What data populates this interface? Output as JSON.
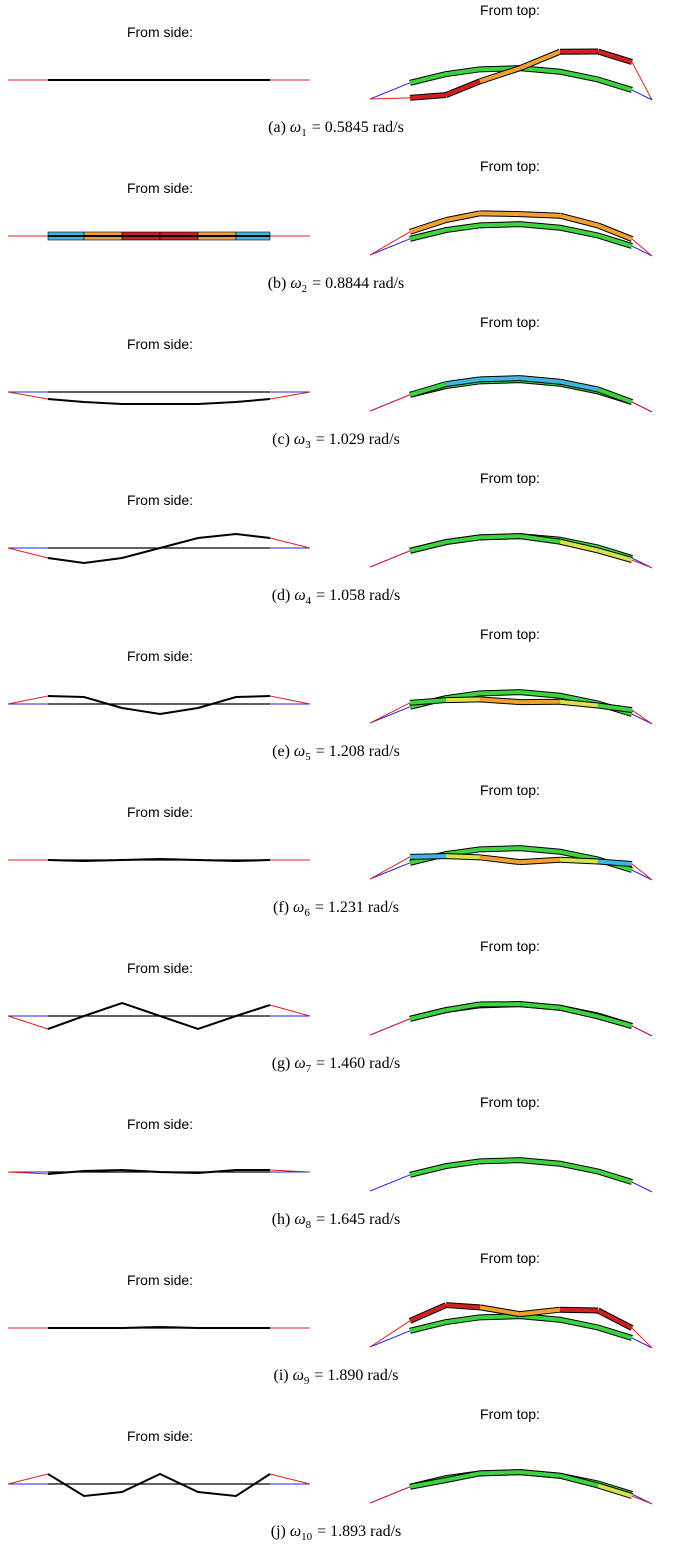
{
  "panels": [
    {
      "side_label": "From side:",
      "top_label": "From top:",
      "caption": {
        "label": "(a)",
        "symbol": "ω",
        "subscript": "1",
        "text": "= 0.5845 rad/s"
      }
    },
    {
      "side_label": "From side:",
      "top_label": "From top:",
      "caption": {
        "label": "(b)",
        "symbol": "ω",
        "subscript": "2",
        "text": "= 0.8844 rad/s"
      }
    },
    {
      "side_label": "From side:",
      "top_label": "From top:",
      "caption": {
        "label": "(c)",
        "symbol": "ω",
        "subscript": "3",
        "text": "= 1.029 rad/s"
      }
    },
    {
      "side_label": "From side:",
      "top_label": "From top:",
      "caption": {
        "label": "(d)",
        "symbol": "ω",
        "subscript": "4",
        "text": "= 1.058 rad/s"
      }
    },
    {
      "side_label": "From side:",
      "top_label": "From top:",
      "caption": {
        "label": "(e)",
        "symbol": "ω",
        "subscript": "5",
        "text": "= 1.208 rad/s"
      }
    },
    {
      "side_label": "From side:",
      "top_label": "From top:",
      "caption": {
        "label": "(f)",
        "symbol": "ω",
        "subscript": "6",
        "text": "= 1.231 rad/s"
      }
    },
    {
      "side_label": "From side:",
      "top_label": "From top:",
      "caption": {
        "label": "(g)",
        "symbol": "ω",
        "subscript": "7",
        "text": "= 1.460 rad/s"
      }
    },
    {
      "side_label": "From side:",
      "top_label": "From top:",
      "caption": {
        "label": "(h)",
        "symbol": "ω",
        "subscript": "8",
        "text": "= 1.645 rad/s"
      }
    },
    {
      "side_label": "From side:",
      "top_label": "From top:",
      "caption": {
        "label": "(i)",
        "symbol": "ω",
        "subscript": "9",
        "text": "= 1.890 rad/s"
      }
    },
    {
      "side_label": "From side:",
      "top_label": "From top:",
      "caption": {
        "label": "(j)",
        "symbol": "ω",
        "subscript": "10",
        "text": "= 1.893 rad/s"
      }
    }
  ]
}
